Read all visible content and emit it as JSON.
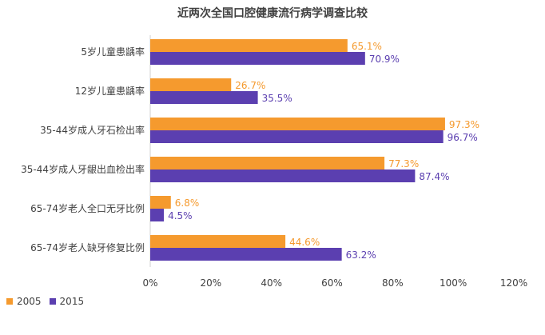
{
  "chart_data": {
    "type": "bar",
    "orientation": "horizontal",
    "title": "近两次全国口腔健康流行病学调查比较",
    "categories": [
      "5岁儿童患龋率",
      "12岁儿童患龋率",
      "35-44岁成人牙石检出率",
      "35-44岁成人牙龈出血检出率",
      "65-74岁老人全口无牙比例",
      "65-74岁老人缺牙修复比例"
    ],
    "series": [
      {
        "name": "2005",
        "values": [
          65.1,
          26.7,
          97.3,
          77.3,
          6.8,
          44.6
        ],
        "labels": [
          "65.1%",
          "26.7%",
          "97.3%",
          "77.3%",
          "6.8%",
          "44.6%"
        ],
        "color": "#F59A2E"
      },
      {
        "name": "2015",
        "values": [
          70.9,
          35.5,
          96.7,
          87.4,
          4.5,
          63.2
        ],
        "labels": [
          "70.9%",
          "35.5%",
          "96.7%",
          "87.4%",
          "4.5%",
          "63.2%"
        ],
        "color": "#5B3FB0"
      }
    ],
    "xlim": [
      0,
      120
    ],
    "xticks": [
      "0%",
      "20%",
      "40%",
      "60%",
      "80%",
      "100%",
      "120%"
    ],
    "grid": false,
    "legend_position": "bottom-left"
  }
}
